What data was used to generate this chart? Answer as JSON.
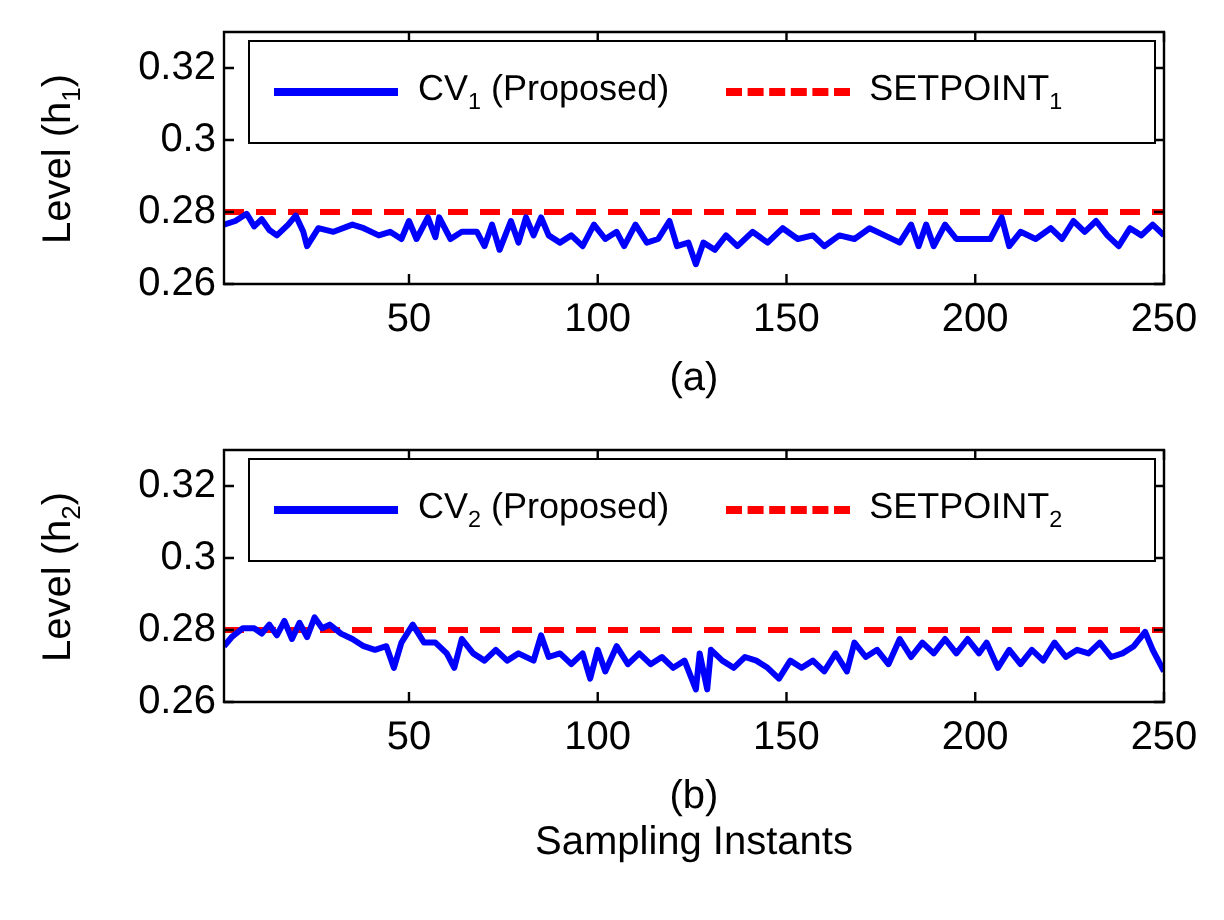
{
  "chart_data": [
    {
      "type": "line",
      "ylabel": "Level (h$_{1}$)",
      "annotations": [
        "(a)"
      ],
      "xlim": [
        1,
        250
      ],
      "xticks": [
        50,
        100,
        150,
        200,
        250
      ],
      "ylim": [
        0.26,
        0.33
      ],
      "yticks": [
        0.26,
        0.28,
        0.3,
        0.32
      ],
      "grid": false,
      "legend": "top",
      "marker": "none",
      "series": [
        {
          "name": "CV$_{1}$ (Proposed)",
          "color": "#0000ff",
          "line_style": "solid",
          "x": [
            1,
            4,
            7,
            9,
            11,
            13,
            15,
            18,
            20,
            22,
            23,
            26,
            30,
            35,
            38,
            42,
            45,
            48,
            50,
            52,
            55,
            57,
            58,
            61,
            64,
            68,
            70,
            72,
            74,
            77,
            79,
            81,
            83,
            85,
            87,
            90,
            93,
            96,
            99,
            102,
            105,
            107,
            110,
            113,
            116,
            119,
            121,
            124,
            126,
            128,
            131,
            134,
            137,
            141,
            145,
            149,
            153,
            157,
            160,
            164,
            168,
            172,
            176,
            180,
            183,
            185,
            187,
            189,
            192,
            195,
            200,
            204,
            207,
            209,
            212,
            216,
            220,
            223,
            226,
            229,
            232,
            235,
            238,
            241,
            244,
            247,
            250
          ],
          "values": [
            0.2765,
            0.2775,
            0.2795,
            0.276,
            0.278,
            0.275,
            0.2735,
            0.2765,
            0.279,
            0.2745,
            0.2705,
            0.2755,
            0.2745,
            0.2765,
            0.2755,
            0.2735,
            0.2745,
            0.2725,
            0.2775,
            0.2725,
            0.2785,
            0.273,
            0.2785,
            0.2725,
            0.2745,
            0.2745,
            0.2705,
            0.2765,
            0.2695,
            0.2775,
            0.2715,
            0.2785,
            0.2735,
            0.2785,
            0.2735,
            0.2715,
            0.2735,
            0.2705,
            0.2765,
            0.2725,
            0.2745,
            0.2705,
            0.2765,
            0.2715,
            0.2725,
            0.2775,
            0.2705,
            0.2715,
            0.2655,
            0.2715,
            0.2695,
            0.2735,
            0.2705,
            0.2745,
            0.2715,
            0.2755,
            0.2725,
            0.2735,
            0.2705,
            0.2735,
            0.2725,
            0.2755,
            0.2735,
            0.2715,
            0.2765,
            0.2705,
            0.2765,
            0.2705,
            0.2765,
            0.2725,
            0.2725,
            0.2725,
            0.2785,
            0.2705,
            0.2745,
            0.2725,
            0.2755,
            0.2725,
            0.2775,
            0.2745,
            0.2775,
            0.2735,
            0.2705,
            0.2755,
            0.2735,
            0.2765,
            0.2735
          ]
        },
        {
          "name": "SETPOINT$_{1}$",
          "color": "#ff0000",
          "line_style": "dashed",
          "x": [
            1,
            250
          ],
          "values": [
            0.28,
            0.28
          ]
        }
      ]
    },
    {
      "type": "line",
      "ylabel": "Level (h$_{2}$)",
      "xlabel": "Sampling Instants",
      "annotations": [
        "(b)"
      ],
      "xlim": [
        1,
        250
      ],
      "xticks": [
        50,
        100,
        150,
        200,
        250
      ],
      "ylim": [
        0.26,
        0.33
      ],
      "yticks": [
        0.26,
        0.28,
        0.3,
        0.32
      ],
      "grid": false,
      "legend": "top",
      "marker": "none",
      "series": [
        {
          "name": "CV$_{2}$ (Proposed)",
          "color": "#0000ff",
          "line_style": "solid",
          "x": [
            1,
            3,
            6,
            9,
            11,
            13,
            15,
            17,
            19,
            21,
            23,
            25,
            27,
            29,
            32,
            35,
            38,
            41,
            44,
            46,
            48,
            51,
            54,
            57,
            60,
            62,
            64,
            67,
            70,
            73,
            76,
            79,
            83,
            85,
            87,
            90,
            93,
            96,
            98,
            100,
            102,
            105,
            108,
            111,
            114,
            117,
            120,
            123,
            126,
            127,
            129,
            130,
            133,
            136,
            139,
            142,
            145,
            148,
            151,
            154,
            157,
            160,
            163,
            166,
            168,
            171,
            174,
            177,
            180,
            183,
            186,
            189,
            192,
            195,
            198,
            201,
            203,
            206,
            209,
            212,
            215,
            218,
            221,
            224,
            227,
            230,
            233,
            236,
            239,
            242,
            245,
            247,
            250
          ],
          "values": [
            0.2755,
            0.278,
            0.2805,
            0.2805,
            0.279,
            0.2815,
            0.2785,
            0.2825,
            0.2775,
            0.282,
            0.278,
            0.2835,
            0.2805,
            0.2815,
            0.279,
            0.2775,
            0.2755,
            0.2745,
            0.2755,
            0.2695,
            0.2765,
            0.2815,
            0.2765,
            0.2765,
            0.2735,
            0.2695,
            0.2775,
            0.2735,
            0.2715,
            0.2745,
            0.2715,
            0.2735,
            0.2715,
            0.2785,
            0.2725,
            0.2735,
            0.2705,
            0.2735,
            0.2665,
            0.2745,
            0.2685,
            0.2755,
            0.2705,
            0.2735,
            0.2705,
            0.2725,
            0.2695,
            0.2715,
            0.2635,
            0.2735,
            0.2635,
            0.2745,
            0.2715,
            0.2695,
            0.2725,
            0.2715,
            0.2695,
            0.2665,
            0.2715,
            0.2695,
            0.2715,
            0.2685,
            0.2735,
            0.2685,
            0.2765,
            0.2725,
            0.2745,
            0.2705,
            0.2775,
            0.2725,
            0.2765,
            0.2735,
            0.2775,
            0.2735,
            0.2775,
            0.2735,
            0.2765,
            0.2695,
            0.2745,
            0.2705,
            0.2745,
            0.2715,
            0.2765,
            0.2725,
            0.2745,
            0.2735,
            0.2765,
            0.2725,
            0.2735,
            0.2755,
            0.2795,
            0.2745,
            0.2685
          ]
        },
        {
          "name": "SETPOINT$_{2}$",
          "color": "#ff0000",
          "line_style": "dashed",
          "x": [
            1,
            250
          ],
          "values": [
            0.28,
            0.28
          ]
        }
      ]
    }
  ]
}
